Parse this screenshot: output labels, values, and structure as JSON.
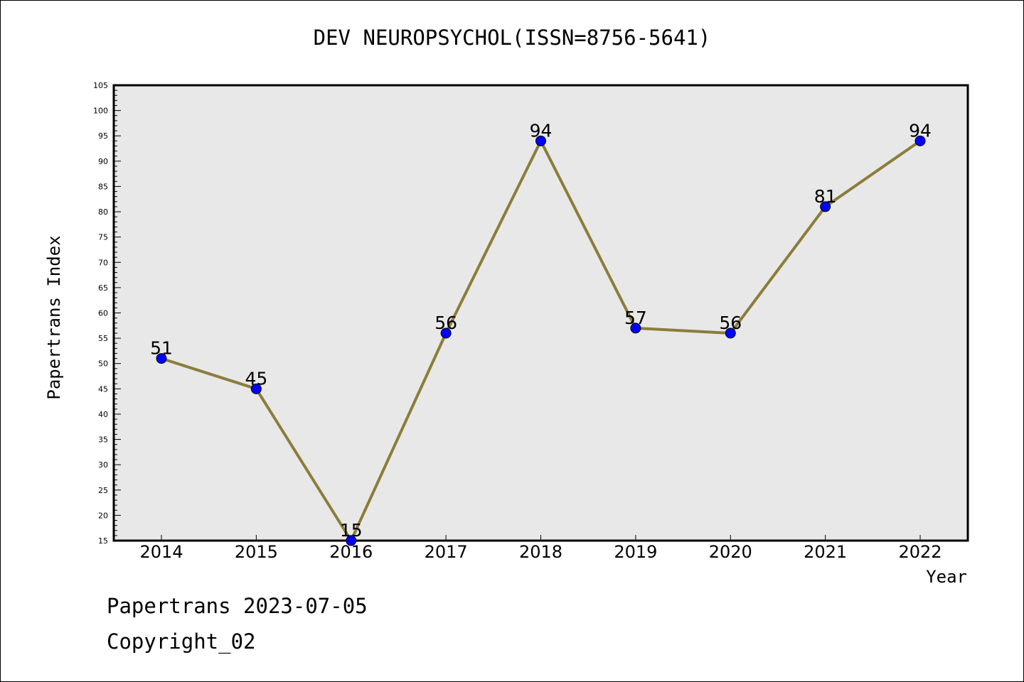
{
  "header": {
    "title": "DEV NEUROPSYCHOL(ISSN=8756-5641)"
  },
  "footer": {
    "line1": "Papertrans 2023-07-05",
    "line2": "Copyright_02"
  },
  "colors": {
    "plot_background": "#e8e8e8",
    "line": "#8b7d3a",
    "marker": "#0000ff"
  },
  "chart_data": {
    "type": "line",
    "title": "DEV NEUROPSYCHOL(ISSN=8756-5641)",
    "xlabel": "Year",
    "ylabel": "Papertrans Index",
    "categories": [
      "2014",
      "2015",
      "2016",
      "2017",
      "2018",
      "2019",
      "2020",
      "2021",
      "2022"
    ],
    "series": [
      {
        "values": [
          51,
          45,
          15,
          56,
          94,
          57,
          56,
          81,
          94
        ]
      }
    ],
    "ylim": [
      15,
      105
    ],
    "yticks": [
      15,
      20,
      25,
      30,
      35,
      40,
      45,
      50,
      55,
      60,
      65,
      70,
      75,
      80,
      85,
      90,
      95,
      100,
      105
    ],
    "data_labels": [
      "51",
      "45",
      "15",
      "56",
      "94",
      "57",
      "56",
      "81",
      "94"
    ],
    "grid": false,
    "legend": "none"
  }
}
